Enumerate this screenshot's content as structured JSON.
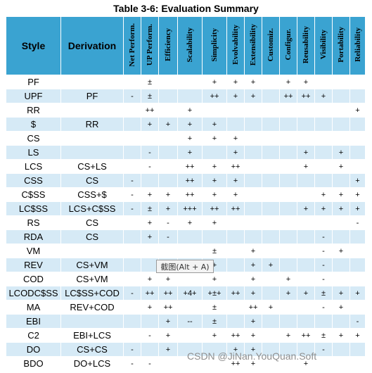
{
  "title": "Table 3-6: Evaluation Summary",
  "headers": [
    "Style",
    "Derivation",
    "Net Perform.",
    "UP Perform.",
    "Efficiency",
    "Scalability",
    "Simplicity",
    "Evolvability",
    "Extensibility",
    "Customiz.",
    "Configur.",
    "Reusability",
    "Visibility",
    "Portability",
    "Reliability"
  ],
  "rows": [
    [
      "PF",
      "",
      "",
      "±",
      "",
      "",
      "+",
      "+",
      "+",
      "",
      "+",
      "+",
      "",
      "",
      ""
    ],
    [
      "UPF",
      "PF",
      "-",
      "±",
      "",
      "",
      "++",
      "+",
      "+",
      "",
      "++",
      "++",
      "+",
      "",
      ""
    ],
    [
      "RR",
      "",
      "",
      "++",
      "",
      "+",
      "",
      "",
      "",
      "",
      "",
      "",
      "",
      "",
      "+"
    ],
    [
      "$",
      "RR",
      "",
      "+",
      "+",
      "+",
      "+",
      "",
      "",
      "",
      "",
      "",
      "",
      "",
      ""
    ],
    [
      "CS",
      "",
      "",
      "",
      "",
      "+",
      "+",
      "+",
      "",
      "",
      "",
      "",
      "",
      "",
      ""
    ],
    [
      "LS",
      "",
      "",
      "-",
      "",
      "+",
      "",
      "+",
      "",
      "",
      "",
      "+",
      "",
      "+",
      ""
    ],
    [
      "LCS",
      "CS+LS",
      "",
      "-",
      "",
      "++",
      "+",
      "++",
      "",
      "",
      "",
      "+",
      "",
      "+",
      ""
    ],
    [
      "CSS",
      "CS",
      "-",
      "",
      "",
      "++",
      "+",
      "+",
      "",
      "",
      "",
      "",
      "",
      "",
      "+"
    ],
    [
      "C$SS",
      "CSS+$",
      "-",
      "+",
      "+",
      "++",
      "+",
      "+",
      "",
      "",
      "",
      "",
      "+",
      "+",
      "+"
    ],
    [
      "LC$SS",
      "LCS+C$SS",
      "-",
      "±",
      "+",
      "+++",
      "++",
      "++",
      "",
      "",
      "",
      "+",
      "+",
      "+",
      "+"
    ],
    [
      "RS",
      "CS",
      "",
      "+",
      "-",
      "+",
      "+",
      "",
      "",
      "",
      "",
      "",
      "",
      "",
      "-"
    ],
    [
      "RDA",
      "CS",
      "",
      "+",
      "-",
      "",
      "",
      "",
      "",
      "",
      "",
      "",
      "-",
      "",
      ""
    ],
    [
      "VM",
      "",
      "",
      "",
      "",
      "",
      "±",
      "",
      "+",
      "",
      "",
      "",
      "-",
      "+",
      ""
    ],
    [
      "REV",
      "CS+VM",
      "",
      "",
      "",
      "-",
      "+",
      "",
      "+",
      "+",
      "",
      "",
      "-",
      "",
      ""
    ],
    [
      "COD",
      "CS+VM",
      "",
      "+",
      "+",
      "",
      "+",
      "",
      "+",
      "",
      "+",
      "",
      "-",
      "",
      ""
    ],
    [
      "LCODC$SS",
      "LC$SS+COD",
      "-",
      "++",
      "++",
      "+4+",
      "+±+",
      "++",
      "+",
      "",
      "+",
      "+",
      "±",
      "+",
      "+"
    ],
    [
      "MA",
      "REV+COD",
      "",
      "+",
      "++",
      "",
      "±",
      "",
      "++",
      "+",
      "",
      "",
      "-",
      "+",
      ""
    ],
    [
      "EBI",
      "",
      "",
      "",
      "+",
      "--",
      "±",
      "",
      "+",
      "",
      "",
      "",
      "",
      "",
      "-"
    ],
    [
      "C2",
      "EBI+LCS",
      "",
      "-",
      "+",
      "",
      "+",
      "++",
      "+",
      "",
      "+",
      "++",
      "±",
      "+",
      "+"
    ],
    [
      "DO",
      "CS+CS",
      "-",
      "",
      "+",
      "",
      "",
      "+",
      "+",
      "",
      "",
      "",
      "-",
      "",
      ""
    ],
    [
      "BDO",
      "DO+LCS",
      "-",
      "-",
      "",
      "",
      "",
      "++",
      "+",
      "",
      "",
      "+",
      "",
      "",
      ""
    ]
  ],
  "tooltip": "截图(Alt + A)",
  "watermark": "CSDN @JiNan.YouQuan.Soft"
}
